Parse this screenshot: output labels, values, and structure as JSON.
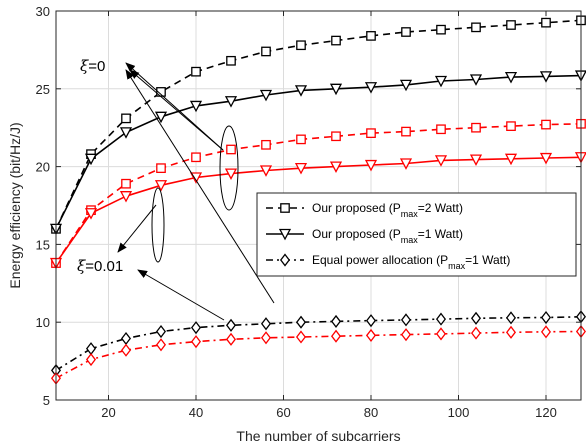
{
  "chart_data": {
    "type": "line",
    "xlabel": "The number of subcarriers",
    "ylabel": "Energy efficiency (bit/Hz/J)",
    "xlim": [
      8,
      128
    ],
    "ylim": [
      5,
      30
    ],
    "xticks": [
      20,
      40,
      60,
      80,
      100,
      120
    ],
    "yticks": [
      5,
      10,
      15,
      20,
      25,
      30
    ],
    "grid": true,
    "legend_position": "right",
    "x": [
      8,
      16,
      24,
      32,
      40,
      48,
      56,
      64,
      72,
      80,
      88,
      96,
      104,
      112,
      120,
      128
    ],
    "legend": [
      {
        "prefix": "Our proposed (P",
        "sub": "max",
        "suffix": "=2 Watt)",
        "marker": "square",
        "dash": "dashed"
      },
      {
        "prefix": "Our proposed (P",
        "sub": "max",
        "suffix": "=1 Watt)",
        "marker": "triangle-down",
        "dash": "solid"
      },
      {
        "prefix": "Equal power allocation (P",
        "sub": "max",
        "suffix": "=1 Watt)",
        "marker": "diamond",
        "dash": "dashdot"
      }
    ],
    "series": [
      {
        "group": "xi=0",
        "color": "#000000",
        "marker": "square",
        "dash": "dashed",
        "values": [
          16.0,
          20.8,
          23.1,
          24.8,
          26.1,
          26.8,
          27.4,
          27.8,
          28.1,
          28.4,
          28.65,
          28.8,
          28.95,
          29.1,
          29.25,
          29.4
        ]
      },
      {
        "group": "xi=0",
        "color": "#000000",
        "marker": "triangle-down",
        "dash": "solid",
        "values": [
          16.0,
          20.5,
          22.2,
          23.2,
          23.9,
          24.2,
          24.6,
          24.9,
          25.0,
          25.1,
          25.25,
          25.5,
          25.6,
          25.75,
          25.8,
          25.85
        ]
      },
      {
        "group": "xi=0.01",
        "color": "#ff0000",
        "marker": "square",
        "dash": "dashed",
        "values": [
          13.8,
          17.2,
          18.9,
          19.9,
          20.6,
          21.1,
          21.4,
          21.75,
          21.95,
          22.15,
          22.25,
          22.4,
          22.5,
          22.6,
          22.7,
          22.75
        ]
      },
      {
        "group": "xi=0.01",
        "color": "#ff0000",
        "marker": "triangle-down",
        "dash": "solid",
        "values": [
          13.8,
          17.0,
          18.1,
          18.8,
          19.3,
          19.55,
          19.75,
          19.9,
          20.0,
          20.1,
          20.2,
          20.4,
          20.45,
          20.5,
          20.55,
          20.6
        ]
      },
      {
        "group": "xi=0",
        "color": "#000000",
        "marker": "diamond",
        "dash": "dashdot",
        "values": [
          6.9,
          8.3,
          8.95,
          9.4,
          9.65,
          9.8,
          9.9,
          10.0,
          10.05,
          10.1,
          10.15,
          10.2,
          10.25,
          10.28,
          10.3,
          10.35
        ]
      },
      {
        "group": "xi=0.01",
        "color": "#ff0000",
        "marker": "diamond",
        "dash": "dashdot",
        "values": [
          6.4,
          7.6,
          8.2,
          8.55,
          8.75,
          8.9,
          9.0,
          9.05,
          9.1,
          9.15,
          9.2,
          9.25,
          9.3,
          9.35,
          9.38,
          9.4
        ]
      }
    ],
    "annotations": [
      {
        "symbol": "ξ",
        "text": "=0"
      },
      {
        "symbol": "ξ",
        "text": "=0.01"
      }
    ]
  }
}
